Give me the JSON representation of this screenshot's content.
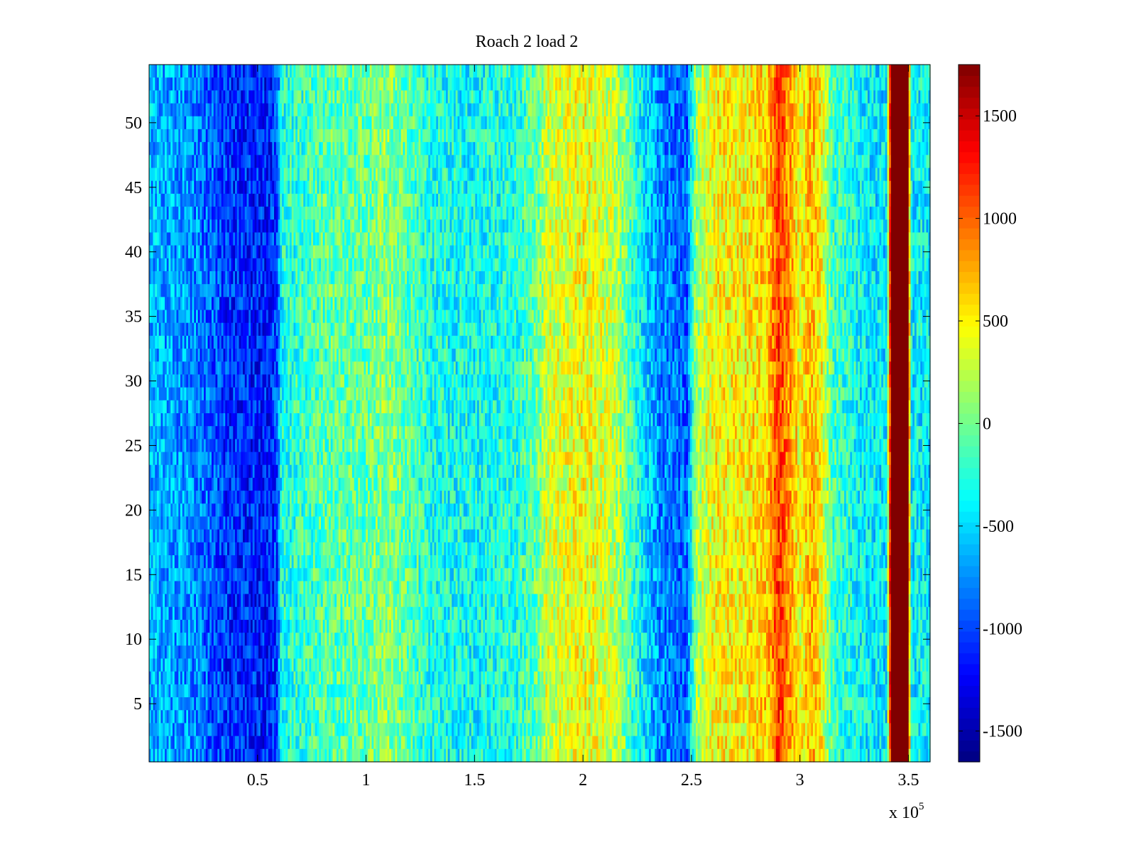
{
  "chart_data": {
    "type": "heatmap",
    "title": "Roach 2 load 2",
    "xlabel": "",
    "ylabel": "",
    "x_multiplier_label": "x 10",
    "x_multiplier_exponent": "5",
    "xlim": [
      0,
      360000
    ],
    "ylim": [
      0.5,
      54.5
    ],
    "x_ticks": [
      {
        "value": 50000,
        "label": "0.5"
      },
      {
        "value": 100000,
        "label": "1"
      },
      {
        "value": 150000,
        "label": "1.5"
      },
      {
        "value": 200000,
        "label": "2"
      },
      {
        "value": 250000,
        "label": "2.5"
      },
      {
        "value": 300000,
        "label": "3"
      },
      {
        "value": 350000,
        "label": "3.5"
      }
    ],
    "y_ticks": [
      {
        "value": 5,
        "label": "5"
      },
      {
        "value": 10,
        "label": "10"
      },
      {
        "value": 15,
        "label": "15"
      },
      {
        "value": 20,
        "label": "20"
      },
      {
        "value": 25,
        "label": "25"
      },
      {
        "value": 30,
        "label": "30"
      },
      {
        "value": 35,
        "label": "35"
      },
      {
        "value": 40,
        "label": "40"
      },
      {
        "value": 45,
        "label": "45"
      },
      {
        "value": 50,
        "label": "50"
      }
    ],
    "rows": 54,
    "colormap": "jet",
    "clim": [
      -1650,
      1750
    ],
    "colorbar_ticks": [
      {
        "value": 1500,
        "label": "1500"
      },
      {
        "value": 1000,
        "label": "1000"
      },
      {
        "value": 500,
        "label": "500"
      },
      {
        "value": 0,
        "label": "0"
      },
      {
        "value": -500,
        "label": "-500"
      },
      {
        "value": -1000,
        "label": "-1000"
      },
      {
        "value": -1500,
        "label": "-1500"
      }
    ],
    "column_profile": [
      {
        "x": 0,
        "value": -600
      },
      {
        "x": 20000,
        "value": -750
      },
      {
        "x": 38000,
        "value": -1100
      },
      {
        "x": 55000,
        "value": -1150
      },
      {
        "x": 59000,
        "value": -1000
      },
      {
        "x": 61000,
        "value": -300
      },
      {
        "x": 80000,
        "value": -100
      },
      {
        "x": 100000,
        "value": -50
      },
      {
        "x": 110000,
        "value": 100
      },
      {
        "x": 115000,
        "value": 0
      },
      {
        "x": 130000,
        "value": -300
      },
      {
        "x": 150000,
        "value": -350
      },
      {
        "x": 170000,
        "value": -250
      },
      {
        "x": 180000,
        "value": 0
      },
      {
        "x": 183000,
        "value": 300
      },
      {
        "x": 200000,
        "value": 450
      },
      {
        "x": 215000,
        "value": 250
      },
      {
        "x": 225000,
        "value": -300
      },
      {
        "x": 235000,
        "value": -750
      },
      {
        "x": 248000,
        "value": -900
      },
      {
        "x": 252000,
        "value": 150
      },
      {
        "x": 262000,
        "value": 500
      },
      {
        "x": 275000,
        "value": 500
      },
      {
        "x": 285000,
        "value": 650
      },
      {
        "x": 290000,
        "value": 1150
      },
      {
        "x": 295000,
        "value": 850
      },
      {
        "x": 300000,
        "value": 400
      },
      {
        "x": 305000,
        "value": 750
      },
      {
        "x": 310000,
        "value": 450
      },
      {
        "x": 315000,
        "value": -150
      },
      {
        "x": 330000,
        "value": -400
      },
      {
        "x": 340000,
        "value": -450
      },
      {
        "x": 342000,
        "value": 1750
      },
      {
        "x": 350000,
        "value": 1750
      },
      {
        "x": 351000,
        "value": -400
      },
      {
        "x": 360000,
        "value": -400
      }
    ]
  }
}
